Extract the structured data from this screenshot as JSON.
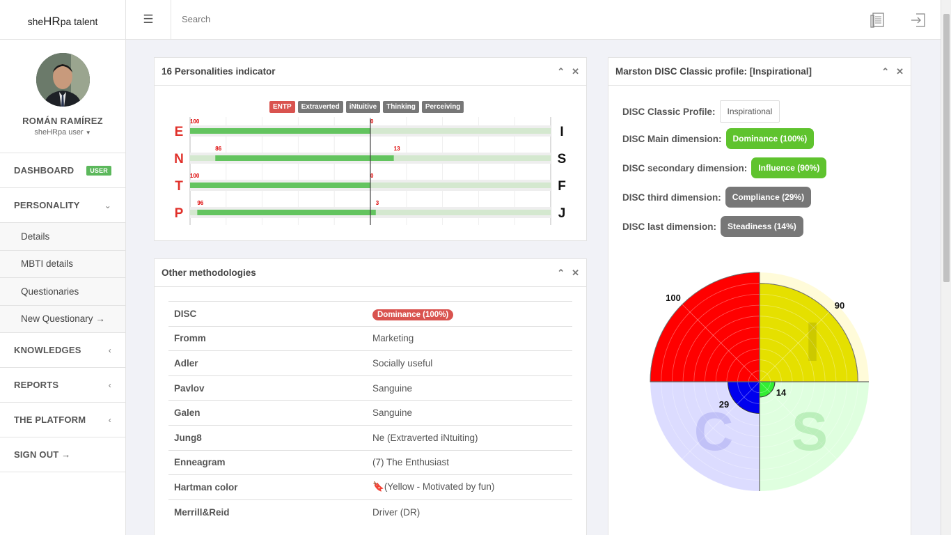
{
  "brand": {
    "pre": "she",
    "mid": "HR",
    "post": "pa talent"
  },
  "user": {
    "name": "ROMÁN RAMÍREZ",
    "role": "sheHRpa user"
  },
  "nav": {
    "dashboard": "DASHBOARD",
    "dashboard_badge": "USER",
    "personality": "PERSONALITY",
    "sub": [
      "Details",
      "MBTI details",
      "Questionaries",
      "New Questionary →"
    ],
    "knowledges": "KNOWLEDGES",
    "reports": "REPORTS",
    "platform": "THE PLATFORM",
    "signout": "SIGN OUT →"
  },
  "search": {
    "placeholder": "Search"
  },
  "personalities": {
    "title": "16 Personalities indicator",
    "tags": [
      "ENTP",
      "Extraverted",
      "iNtuitive",
      "Thinking",
      "Perceiving"
    ],
    "rows": [
      {
        "left": "E",
        "right": "I",
        "lval": "100",
        "rval": "0",
        "lnum": 100,
        "rnum": 0
      },
      {
        "left": "N",
        "right": "S",
        "lval": "86",
        "rval": "13",
        "lnum": 86,
        "rnum": 13
      },
      {
        "left": "T",
        "right": "F",
        "lval": "100",
        "rval": "0",
        "lnum": 100,
        "rnum": 0
      },
      {
        "left": "P",
        "right": "J",
        "lval": "96",
        "rval": "3",
        "lnum": 96,
        "rnum": 3
      }
    ]
  },
  "other": {
    "title": "Other methodologies",
    "rows": [
      {
        "k": "DISC",
        "v": "Dominance (100%)"
      },
      {
        "k": "Fromm",
        "v": "Marketing"
      },
      {
        "k": "Adler",
        "v": "Socially useful"
      },
      {
        "k": "Pavlov",
        "v": "Sanguine"
      },
      {
        "k": "Galen",
        "v": "Sanguine"
      },
      {
        "k": "Jung8",
        "v": "Ne (Extraverted iNtuiting)"
      },
      {
        "k": "Enneagram",
        "v": "(7) The Enthusiast"
      },
      {
        "k": "Hartman color",
        "v": "(Yellow - Motivated by fun)"
      },
      {
        "k": "Merrill&Reid",
        "v": "Driver (DR)"
      }
    ]
  },
  "disc": {
    "title": "Marston DISC Classic profile: [Inspirational]",
    "profile_label": "DISC Classic Profile:",
    "profile": "Inspirational",
    "main_label": "DISC Main dimension:",
    "main": "Dominance (100%)",
    "second_label": "DISC secondary dimension:",
    "second": "Influence (90%)",
    "third_label": "DISC third dimension:",
    "third": "Compliance (29%)",
    "last_label": "DISC last dimension:",
    "last": "Steadiness (14%)",
    "chart_labels": {
      "d": "100",
      "i": "90",
      "c": "29",
      "s": "14",
      "letter_i": "I",
      "letter_c": "C",
      "letter_s": "S"
    }
  },
  "chart_data": {
    "type": "polar-area",
    "categories": [
      "D",
      "I",
      "S",
      "C"
    ],
    "values": [
      100,
      90,
      14,
      29
    ],
    "colors": {
      "D": "#ff0000",
      "I": "#e5e000",
      "S": "#33ee33",
      "C": "#0000ee"
    },
    "ylim": [
      0,
      100
    ]
  }
}
